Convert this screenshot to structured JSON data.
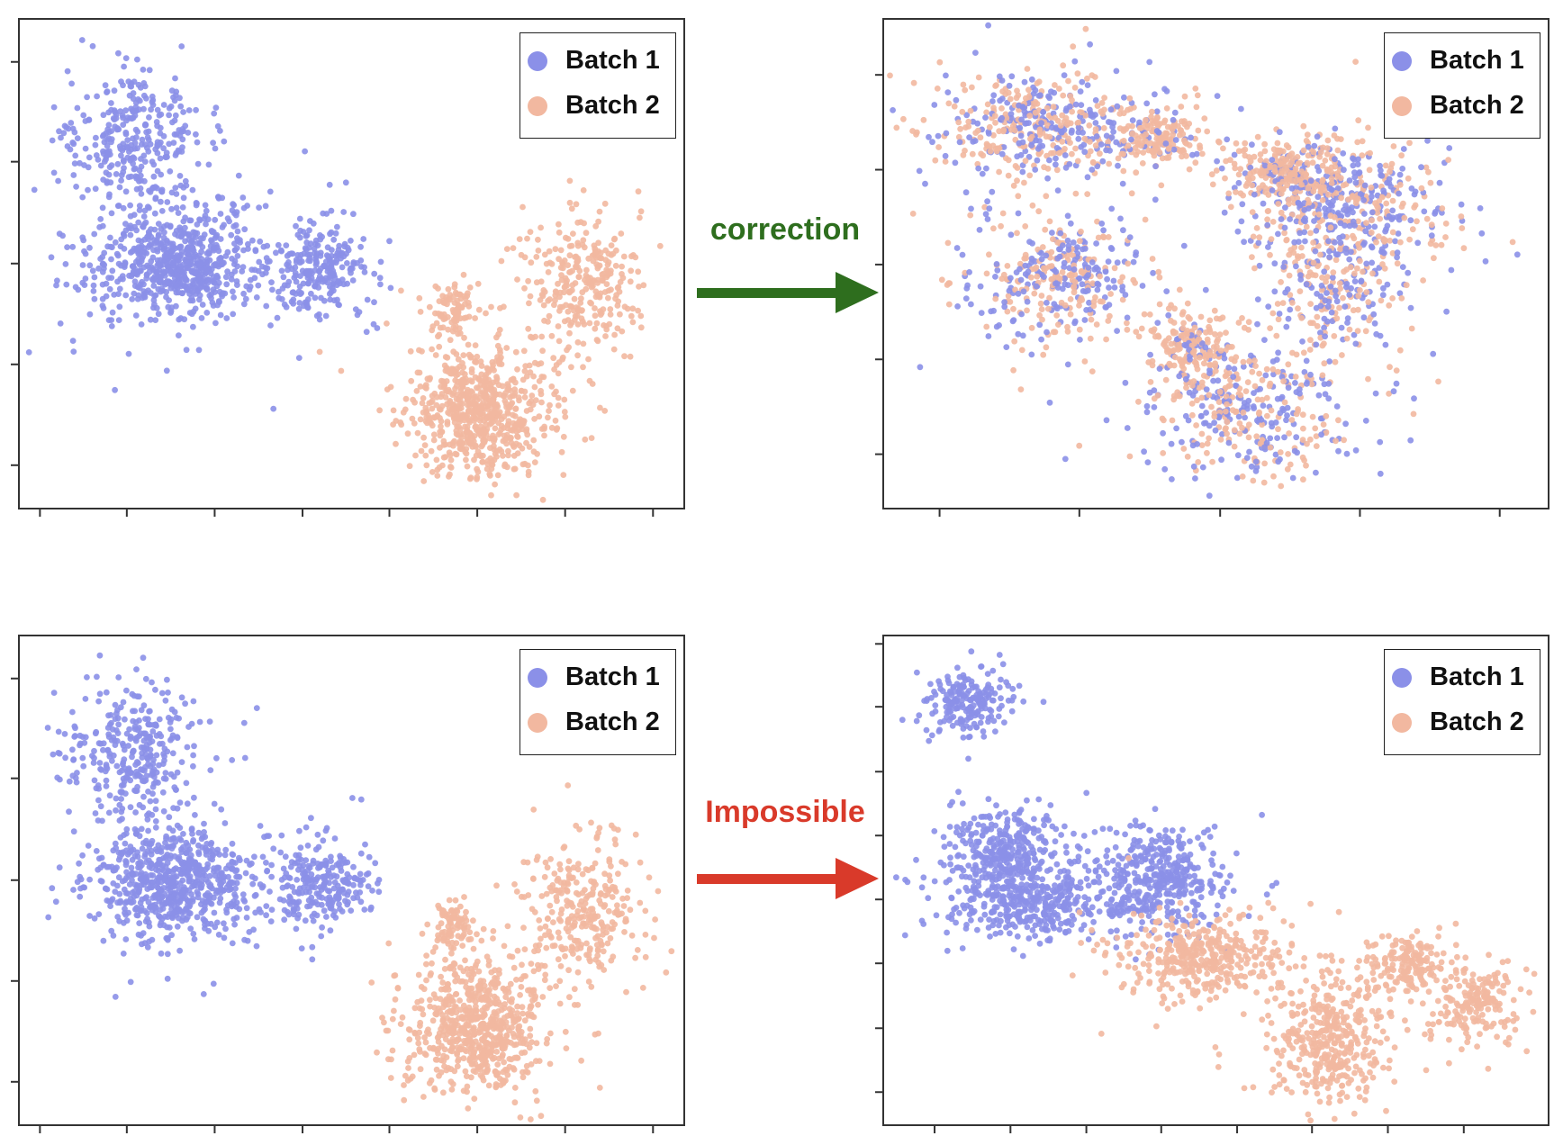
{
  "colors": {
    "batch1": "#8b90e8",
    "batch2": "#f2b8a0",
    "correction": "#2e6e1e",
    "impossible": "#d93a2a"
  },
  "legend": {
    "batch1": "Batch 1",
    "batch2": "Batch 2"
  },
  "arrows": {
    "top": "correction",
    "bottom": "Impossible"
  },
  "chart_data": [
    {
      "id": "before-top",
      "type": "scatter",
      "xlim": [
        0,
        100
      ],
      "ylim": [
        0,
        100
      ],
      "grid": false,
      "legend_position": "top-right",
      "series": [
        {
          "name": "Batch 1",
          "clusters": [
            {
              "cx": 17.5,
              "cy": 75,
              "sx": 5,
              "sy": 7,
              "n": 330
            },
            {
              "cx": 23.5,
              "cy": 50,
              "sx": 6,
              "sy": 5.5,
              "n": 700
            },
            {
              "cx": 45,
              "cy": 49,
              "sx": 3.5,
              "sy": 4.5,
              "n": 250
            }
          ]
        },
        {
          "name": "Batch 2",
          "clusters": [
            {
              "cx": 65.4,
              "cy": 40.6,
              "sx": 1.5,
              "sy": 2.5,
              "n": 80
            },
            {
              "cx": 69,
              "cy": 20,
              "sx": 5,
              "sy": 6.5,
              "n": 700
            },
            {
              "cx": 85,
              "cy": 45,
              "sx": 4.5,
              "sy": 7,
              "n": 300
            }
          ]
        }
      ]
    },
    {
      "id": "after-correction",
      "type": "scatter",
      "xlim": [
        0,
        100
      ],
      "ylim": [
        0,
        100
      ],
      "grid": false,
      "legend_position": "top-right",
      "series": [
        {
          "name": "Batch 1",
          "clusters": [
            {
              "cx": 23.4,
              "cy": 78,
              "sx": 7,
              "sy": 5,
              "n": 230
            },
            {
              "cx": 41.3,
              "cy": 76,
              "sx": 3,
              "sy": 3,
              "n": 30
            },
            {
              "cx": 60.8,
              "cy": 69,
              "sx": 4,
              "sy": 3,
              "n": 60
            },
            {
              "cx": 69.8,
              "cy": 63,
              "sx": 8,
              "sy": 6,
              "n": 200
            },
            {
              "cx": 68,
              "cy": 46.7,
              "sx": 5,
              "sy": 8,
              "n": 150
            },
            {
              "cx": 26.3,
              "cy": 47.8,
              "sx": 6,
              "sy": 6,
              "n": 200
            },
            {
              "cx": 46.6,
              "cy": 33.5,
              "sx": 3,
              "sy": 3,
              "n": 30
            },
            {
              "cx": 54.8,
              "cy": 20,
              "sx": 8,
              "sy": 7,
              "n": 200
            }
          ]
        },
        {
          "name": "Batch 2",
          "clusters": [
            {
              "cx": 23.4,
              "cy": 78,
              "sx": 7,
              "sy": 5,
              "n": 250
            },
            {
              "cx": 41.3,
              "cy": 76,
              "sx": 3,
              "sy": 3,
              "n": 150
            },
            {
              "cx": 60.8,
              "cy": 69,
              "sx": 4,
              "sy": 3,
              "n": 200
            },
            {
              "cx": 69.8,
              "cy": 63,
              "sx": 8,
              "sy": 6,
              "n": 200
            },
            {
              "cx": 68,
              "cy": 46.7,
              "sx": 5,
              "sy": 8,
              "n": 150
            },
            {
              "cx": 26.3,
              "cy": 47.8,
              "sx": 6,
              "sy": 6,
              "n": 200
            },
            {
              "cx": 46.6,
              "cy": 33.5,
              "sx": 3,
              "sy": 3,
              "n": 150
            },
            {
              "cx": 54.8,
              "cy": 20,
              "sx": 8,
              "sy": 7,
              "n": 200
            }
          ]
        }
      ]
    },
    {
      "id": "before-bottom",
      "type": "scatter",
      "xlim": [
        0,
        100
      ],
      "ylim": [
        0,
        100
      ],
      "grid": false,
      "legend_position": "top-right",
      "series": [
        {
          "name": "Batch 1",
          "clusters": [
            {
              "cx": 17.5,
              "cy": 75,
              "sx": 5,
              "sy": 7,
              "n": 330
            },
            {
              "cx": 23.5,
              "cy": 50,
              "sx": 6,
              "sy": 5.5,
              "n": 700
            },
            {
              "cx": 45,
              "cy": 49,
              "sx": 3.5,
              "sy": 4.5,
              "n": 250
            }
          ]
        },
        {
          "name": "Batch 2",
          "clusters": [
            {
              "cx": 65.4,
              "cy": 40.6,
              "sx": 1.5,
              "sy": 2.5,
              "n": 80
            },
            {
              "cx": 69,
              "cy": 20,
              "sx": 5,
              "sy": 6.5,
              "n": 700
            },
            {
              "cx": 85,
              "cy": 45,
              "sx": 4.5,
              "sy": 7,
              "n": 300
            }
          ]
        }
      ]
    },
    {
      "id": "after-impossible",
      "type": "scatter",
      "xlim": [
        0,
        100
      ],
      "ylim": [
        0,
        100
      ],
      "grid": false,
      "legend_position": "top-right",
      "series": [
        {
          "name": "Batch 1",
          "clusters": [
            {
              "cx": 12.6,
              "cy": 87,
              "sx": 3,
              "sy": 3,
              "n": 200
            },
            {
              "cx": 18,
              "cy": 56.5,
              "sx": 4,
              "sy": 4,
              "n": 300
            },
            {
              "cx": 21.9,
              "cy": 45.3,
              "sx": 6,
              "sy": 3.5,
              "n": 400
            },
            {
              "cx": 41.3,
              "cy": 50.4,
              "sx": 5,
              "sy": 5,
              "n": 400
            }
          ]
        },
        {
          "name": "Batch 2",
          "clusters": [
            {
              "cx": 47.3,
              "cy": 34,
              "sx": 6,
              "sy": 4,
              "n": 400
            },
            {
              "cx": 67.4,
              "cy": 17,
              "sx": 4,
              "sy": 6,
              "n": 400
            },
            {
              "cx": 78.7,
              "cy": 32.5,
              "sx": 3,
              "sy": 3,
              "n": 150
            },
            {
              "cx": 88.5,
              "cy": 25,
              "sx": 3.5,
              "sy": 4,
              "n": 200
            }
          ]
        }
      ]
    }
  ]
}
